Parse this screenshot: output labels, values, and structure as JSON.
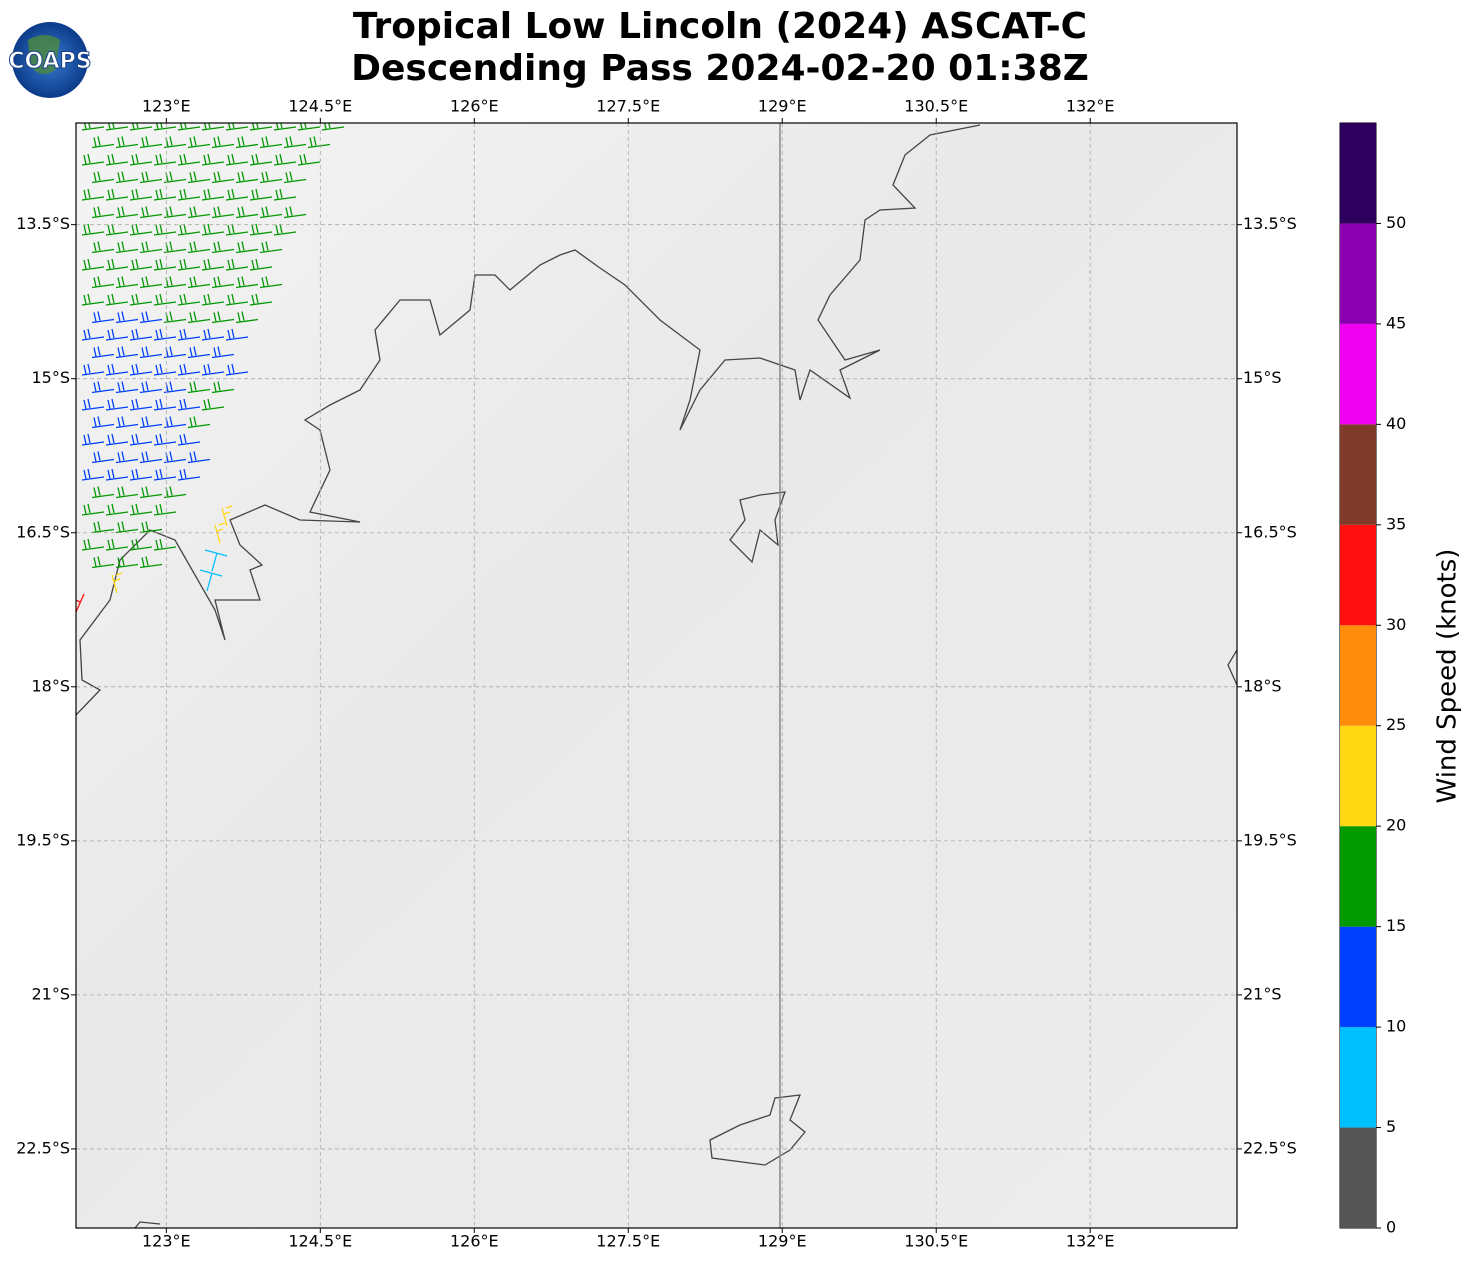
{
  "title": [
    "Tropical Low Lincoln (2024) ASCAT-C",
    "Descending Pass 2024-02-20 01:38Z"
  ],
  "logo": "COAPS",
  "map": {
    "xlim": [
      122.12,
      133.43
    ],
    "ylim": [
      -23.27,
      -12.51
    ],
    "xticks": [
      {
        "value": 123,
        "label": "123°E"
      },
      {
        "value": 124.5,
        "label": "124.5°E"
      },
      {
        "value": 126,
        "label": "126°E"
      },
      {
        "value": 127.5,
        "label": "127.5°E"
      },
      {
        "value": 129,
        "label": "129°E"
      },
      {
        "value": 130.5,
        "label": "130.5°E"
      },
      {
        "value": 132,
        "label": "132°E"
      }
    ],
    "yticks": [
      {
        "value": -13.5,
        "label": "13.5°S"
      },
      {
        "value": -15,
        "label": "15°S"
      },
      {
        "value": -16.5,
        "label": "16.5°S"
      },
      {
        "value": -18,
        "label": "18°S"
      },
      {
        "value": -19.5,
        "label": "19.5°S"
      },
      {
        "value": -21,
        "label": "21°S"
      },
      {
        "value": -22.5,
        "label": "22.5°S"
      }
    ],
    "grid": true
  },
  "colorbar": {
    "label": "Wind Speed (knots)",
    "lim": [
      0,
      55
    ],
    "ticks": [
      0,
      5,
      10,
      15,
      20,
      25,
      30,
      35,
      40,
      45,
      50
    ],
    "bins": [
      0,
      5,
      10,
      15,
      20,
      25,
      30,
      35,
      40,
      45,
      50,
      55
    ],
    "colors": [
      "#555555",
      "#00bfff",
      "#0040ff",
      "#009900",
      "#ffd712",
      "#ff8c0a",
      "#ff1010",
      "#7f3a2a",
      "#f000f0",
      "#8a00b0",
      "#2d005e"
    ]
  }
}
